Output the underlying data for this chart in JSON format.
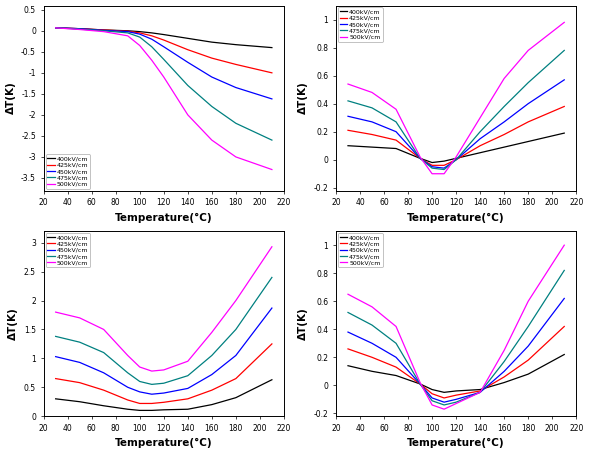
{
  "colors": [
    "black",
    "red",
    "blue",
    "teal",
    "magenta"
  ],
  "labels": [
    "400kV/cm",
    "425kV/cm",
    "450kV/cm",
    "475kV/cm",
    "500kV/cm"
  ],
  "xlabel": "Temperature(°C)",
  "ylabel": "ΔT(K)",
  "tl_data": {
    "temp": [
      30,
      50,
      70,
      90,
      100,
      110,
      120,
      140,
      160,
      180,
      210
    ],
    "ylim": [
      -3.8,
      0.6
    ],
    "yticks": [
      0.5,
      0.0,
      -0.5,
      -1.0,
      -1.5,
      -2.0,
      -2.5,
      -3.0,
      -3.5
    ],
    "xticks": [
      20,
      40,
      60,
      80,
      100,
      120,
      140,
      160,
      180,
      200,
      220
    ],
    "series": [
      [
        0.07,
        0.05,
        0.02,
        0.0,
        -0.02,
        -0.05,
        -0.09,
        -0.18,
        -0.27,
        -0.33,
        -0.4
      ],
      [
        0.07,
        0.05,
        0.02,
        -0.01,
        -0.05,
        -0.12,
        -0.22,
        -0.45,
        -0.65,
        -0.8,
        -1.0
      ],
      [
        0.07,
        0.05,
        0.01,
        -0.02,
        -0.08,
        -0.2,
        -0.38,
        -0.75,
        -1.1,
        -1.35,
        -1.62
      ],
      [
        0.07,
        0.04,
        0.0,
        -0.05,
        -0.15,
        -0.38,
        -0.68,
        -1.3,
        -1.8,
        -2.2,
        -2.6
      ],
      [
        0.07,
        0.03,
        -0.02,
        -0.12,
        -0.35,
        -0.7,
        -1.1,
        -2.0,
        -2.6,
        -3.0,
        -3.3
      ]
    ],
    "legend_loc": "lower left"
  },
  "tr_data": {
    "temp": [
      30,
      50,
      70,
      90,
      100,
      110,
      120,
      140,
      160,
      180,
      210
    ],
    "ylim": [
      -0.22,
      1.1
    ],
    "yticks": [
      -0.2,
      0.0,
      0.2,
      0.4,
      0.6,
      0.8,
      1.0
    ],
    "xticks": [
      20,
      40,
      60,
      80,
      100,
      120,
      140,
      160,
      180,
      200,
      220
    ],
    "series": [
      [
        0.1,
        0.09,
        0.08,
        0.01,
        -0.02,
        -0.01,
        0.01,
        0.05,
        0.09,
        0.13,
        0.19
      ],
      [
        0.21,
        0.18,
        0.14,
        0.01,
        -0.04,
        -0.04,
        0.0,
        0.1,
        0.18,
        0.27,
        0.38
      ],
      [
        0.31,
        0.27,
        0.2,
        0.01,
        -0.05,
        -0.06,
        0.0,
        0.15,
        0.27,
        0.4,
        0.57
      ],
      [
        0.42,
        0.37,
        0.27,
        0.01,
        -0.06,
        -0.07,
        0.0,
        0.2,
        0.38,
        0.55,
        0.78
      ],
      [
        0.54,
        0.48,
        0.36,
        0.02,
        -0.1,
        -0.1,
        0.02,
        0.3,
        0.58,
        0.78,
        0.98
      ]
    ],
    "legend_loc": "upper left"
  },
  "bl_data": {
    "temp": [
      30,
      50,
      70,
      90,
      100,
      110,
      120,
      140,
      160,
      180,
      210
    ],
    "ylim": [
      0.0,
      3.2
    ],
    "yticks": [
      0.0,
      0.5,
      1.0,
      1.5,
      2.0,
      2.5,
      3.0
    ],
    "xticks": [
      20,
      40,
      60,
      80,
      100,
      120,
      140,
      160,
      180,
      200,
      220
    ],
    "series": [
      [
        0.3,
        0.25,
        0.18,
        0.12,
        0.1,
        0.1,
        0.11,
        0.12,
        0.2,
        0.32,
        0.63
      ],
      [
        0.65,
        0.58,
        0.45,
        0.28,
        0.22,
        0.22,
        0.24,
        0.3,
        0.45,
        0.65,
        1.25
      ],
      [
        1.03,
        0.93,
        0.75,
        0.5,
        0.42,
        0.38,
        0.4,
        0.48,
        0.72,
        1.05,
        1.87
      ],
      [
        1.38,
        1.28,
        1.1,
        0.75,
        0.6,
        0.55,
        0.57,
        0.7,
        1.05,
        1.5,
        2.4
      ],
      [
        1.8,
        1.7,
        1.5,
        1.05,
        0.85,
        0.78,
        0.8,
        0.95,
        1.45,
        2.0,
        2.93
      ]
    ],
    "legend_loc": "upper left"
  },
  "br_data": {
    "temp": [
      30,
      50,
      70,
      90,
      100,
      110,
      120,
      140,
      160,
      180,
      210
    ],
    "ylim": [
      -0.22,
      1.1
    ],
    "yticks": [
      -0.2,
      0.0,
      0.2,
      0.4,
      0.6,
      0.8,
      1.0
    ],
    "xticks": [
      20,
      40,
      60,
      80,
      100,
      120,
      140,
      160,
      180,
      200,
      220
    ],
    "series": [
      [
        0.14,
        0.1,
        0.07,
        0.01,
        -0.03,
        -0.05,
        -0.04,
        -0.03,
        0.02,
        0.08,
        0.22
      ],
      [
        0.26,
        0.2,
        0.13,
        0.01,
        -0.06,
        -0.09,
        -0.07,
        -0.04,
        0.06,
        0.18,
        0.42
      ],
      [
        0.38,
        0.3,
        0.2,
        0.01,
        -0.09,
        -0.12,
        -0.1,
        -0.05,
        0.1,
        0.28,
        0.62
      ],
      [
        0.52,
        0.43,
        0.3,
        0.01,
        -0.11,
        -0.14,
        -0.12,
        -0.05,
        0.17,
        0.42,
        0.82
      ],
      [
        0.65,
        0.56,
        0.42,
        0.02,
        -0.14,
        -0.17,
        -0.13,
        -0.05,
        0.25,
        0.6,
        1.0
      ]
    ],
    "legend_loc": "upper left"
  }
}
